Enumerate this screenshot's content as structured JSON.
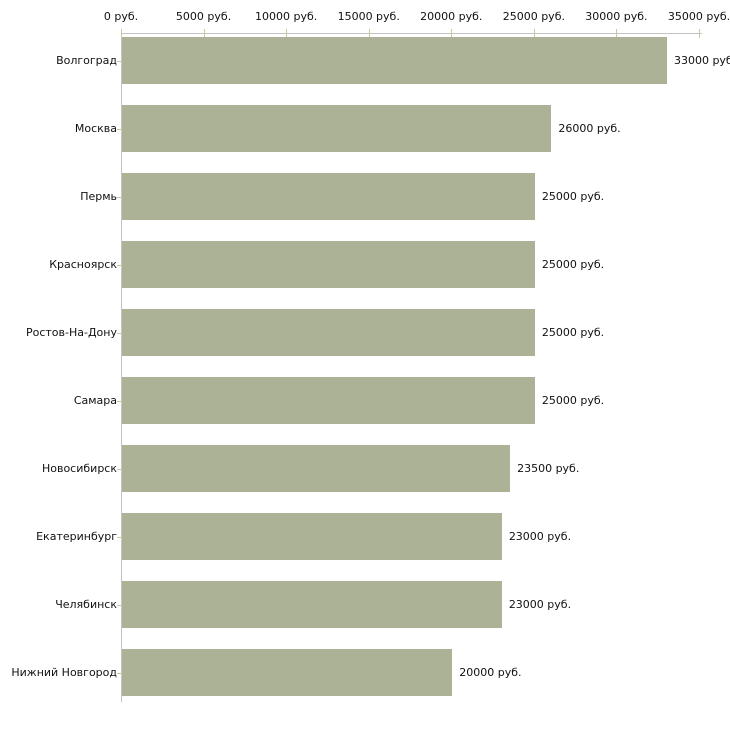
{
  "chart_data": {
    "type": "bar",
    "orientation": "horizontal",
    "categories": [
      "Волгоград",
      "Москва",
      "Пермь",
      "Красноярск",
      "Ростов-На-Дону",
      "Самара",
      "Новосибирск",
      "Екатеринбург",
      "Челябинск",
      "Нижний Новгород"
    ],
    "values": [
      33000,
      26000,
      25000,
      25000,
      25000,
      25000,
      23500,
      23000,
      23000,
      20000
    ],
    "value_labels": [
      "33000 руб",
      "26000 руб.",
      "25000 руб.",
      "25000 руб.",
      "25000 руб.",
      "25000 руб.",
      "23500 руб.",
      "23000 руб.",
      "23000 руб.",
      "20000 руб."
    ],
    "x_axis": {
      "position": "top",
      "xlim": [
        0,
        35000
      ],
      "tick_values": [
        0,
        5000,
        10000,
        15000,
        20000,
        25000,
        30000,
        35000
      ],
      "tick_labels": [
        "0 руб.",
        "5000 руб.",
        "10000 руб.",
        "15000 руб.",
        "20000 руб.",
        "25000 руб.",
        "30000 руб.",
        "35000 руб."
      ]
    },
    "grid": "off",
    "legend": "none",
    "colors": {
      "bar": "#abb295",
      "axis_line": "#c3c3c3",
      "tick_mark": "#c9c99e",
      "text": "#111111",
      "background": "#ffffff"
    }
  }
}
